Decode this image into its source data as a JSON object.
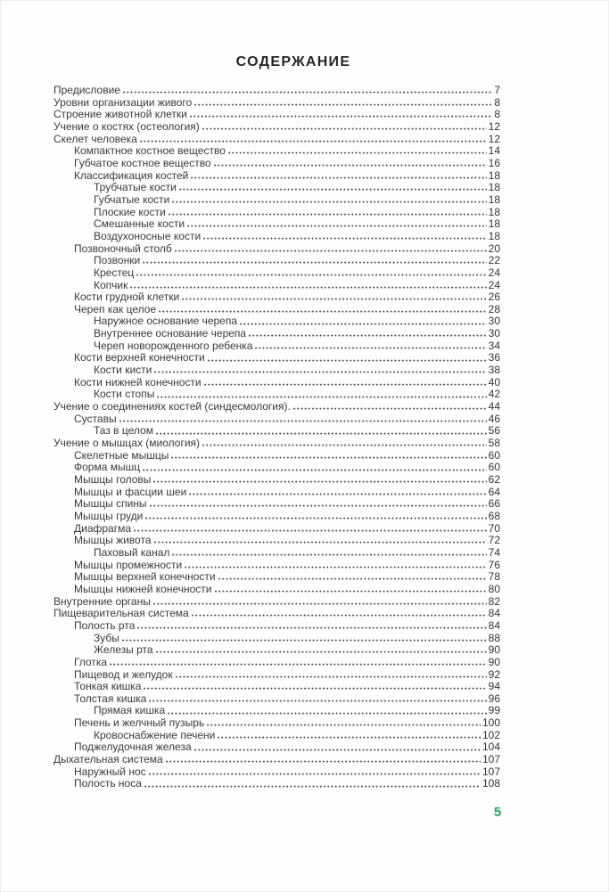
{
  "page": {
    "title": "СОДЕРЖАНИЕ",
    "folio_number": "5",
    "folio_color": "#2e9e5c",
    "text_color": "#3a3a3a"
  },
  "toc": {
    "entries": [
      {
        "label": "Предисловие",
        "page": "7",
        "level": 0
      },
      {
        "label": "Уровни организации живого",
        "page": "8",
        "level": 0
      },
      {
        "label": "Строение животной клетки",
        "page": "8",
        "level": 0
      },
      {
        "label": "Учение о костях (остеология)",
        "page": "12",
        "level": 0
      },
      {
        "label": "Скелет человека",
        "page": "12",
        "level": 0
      },
      {
        "label": "Компактное костное вещество",
        "page": "14",
        "level": 1
      },
      {
        "label": "Губчатое костное вещество",
        "page": "16",
        "level": 1
      },
      {
        "label": "Классификация костей",
        "page": "18",
        "level": 1
      },
      {
        "label": "Трубчатые кости",
        "page": "18",
        "level": 2
      },
      {
        "label": "Губчатые кости",
        "page": "18",
        "level": 2
      },
      {
        "label": "Плоские кости",
        "page": "18",
        "level": 2
      },
      {
        "label": "Смешанные кости",
        "page": "18",
        "level": 2
      },
      {
        "label": "Воздухоносные кости",
        "page": "18",
        "level": 2
      },
      {
        "label": "Позвоночный столб",
        "page": "20",
        "level": 1
      },
      {
        "label": "Позвонки",
        "page": "22",
        "level": 2
      },
      {
        "label": "Крестец",
        "page": "24",
        "level": 2
      },
      {
        "label": "Копчик",
        "page": "24",
        "level": 2
      },
      {
        "label": "Кости грудной клетки",
        "page": "26",
        "level": 1
      },
      {
        "label": "Череп как целое",
        "page": "28",
        "level": 1
      },
      {
        "label": "Наружное основание черепа",
        "page": "30",
        "level": 2
      },
      {
        "label": "Внутреннее основание черепа",
        "page": "30",
        "level": 2
      },
      {
        "label": "Череп новорожденного ребенка",
        "page": "34",
        "level": 2
      },
      {
        "label": "Кости верхней конечности",
        "page": "36",
        "level": 1
      },
      {
        "label": "Кости кисти",
        "page": "38",
        "level": 2
      },
      {
        "label": "Кости нижней конечности",
        "page": "40",
        "level": 1
      },
      {
        "label": "Кости стопы",
        "page": "42",
        "level": 2
      },
      {
        "label": "Учение о соединениях костей (синдесмология).",
        "page": "44",
        "level": 0
      },
      {
        "label": "Суставы",
        "page": "46",
        "level": 1
      },
      {
        "label": "Таз в целом",
        "page": "56",
        "level": 2
      },
      {
        "label": "Учение о мышцах (миология)",
        "page": "58",
        "level": 0
      },
      {
        "label": "Скелетные мышцы",
        "page": "60",
        "level": 1
      },
      {
        "label": "Форма мышц",
        "page": "60",
        "level": 1
      },
      {
        "label": "Мышцы головы",
        "page": "62",
        "level": 1
      },
      {
        "label": "Мышцы и фасции шеи",
        "page": "64",
        "level": 1
      },
      {
        "label": "Мышцы спины",
        "page": "66",
        "level": 1
      },
      {
        "label": "Мышцы груди",
        "page": "68",
        "level": 1
      },
      {
        "label": "Диафрагма",
        "page": "70",
        "level": 1
      },
      {
        "label": "Мышцы живота",
        "page": "72",
        "level": 1
      },
      {
        "label": "Паховый канал",
        "page": "74",
        "level": 2
      },
      {
        "label": "Мышцы промежности",
        "page": "76",
        "level": 1
      },
      {
        "label": "Мышцы верхней конечности",
        "page": "78",
        "level": 1
      },
      {
        "label": "Мышцы нижней конечности",
        "page": "80",
        "level": 1
      },
      {
        "label": "Внутренние органы",
        "page": "82",
        "level": 0
      },
      {
        "label": "Пищеварительная система",
        "page": "84",
        "level": 0
      },
      {
        "label": "Полость рта",
        "page": "84",
        "level": 1
      },
      {
        "label": "Зубы",
        "page": "88",
        "level": 2
      },
      {
        "label": "Железы рта",
        "page": "90",
        "level": 2
      },
      {
        "label": "Глотка",
        "page": "90",
        "level": 1
      },
      {
        "label": "Пищевод и желудок",
        "page": "92",
        "level": 1
      },
      {
        "label": "Тонкая кишка",
        "page": "94",
        "level": 1
      },
      {
        "label": "Толстая кишка",
        "page": "96",
        "level": 1
      },
      {
        "label": "Прямая кишка",
        "page": "99",
        "level": 2
      },
      {
        "label": "Печень и желчный пузырь",
        "page": "100",
        "level": 1
      },
      {
        "label": "Кровоснабжение печени",
        "page": "102",
        "level": 2
      },
      {
        "label": "Поджелудочная железа",
        "page": "104",
        "level": 1
      },
      {
        "label": "Дыхательная система",
        "page": "107",
        "level": 0
      },
      {
        "label": "Наружный нос",
        "page": "107",
        "level": 1
      },
      {
        "label": "Полость носа",
        "page": "108",
        "level": 1
      }
    ]
  }
}
